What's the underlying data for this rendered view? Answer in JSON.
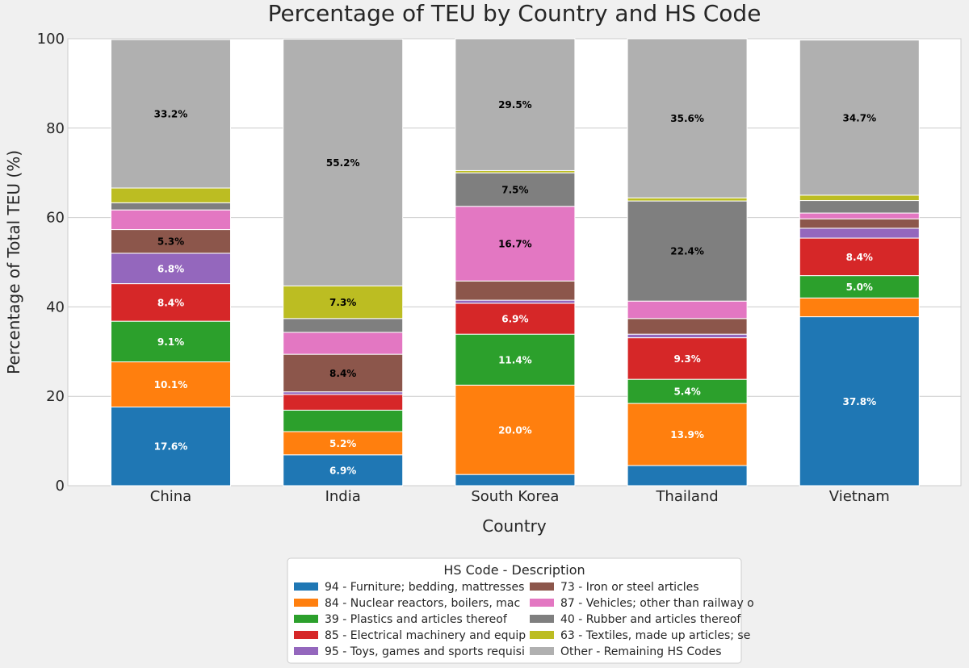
{
  "chart_data": {
    "type": "bar",
    "stacked": true,
    "title": "Percentage of TEU by Country and HS Code",
    "xlabel": "Country",
    "ylabel": "Percentage of Total TEU (%)",
    "ylim": [
      0,
      100
    ],
    "yticks": [
      0,
      20,
      40,
      60,
      80,
      100
    ],
    "grid": true,
    "categories": [
      "China",
      "India",
      "South Korea",
      "Thailand",
      "Vietnam"
    ],
    "legend": {
      "title": "HS Code - Description",
      "placement": "bottom-center",
      "columns": 2
    },
    "label_threshold": 5,
    "series": [
      {
        "name": "94 - Furniture; bedding, mattresses",
        "color": "#1f77b4",
        "label_color": "#ffffff",
        "values": [
          17.6,
          6.9,
          2.5,
          4.5,
          37.8
        ]
      },
      {
        "name": "84 - Nuclear reactors, boilers, mac",
        "color": "#ff7f0e",
        "label_color": "#ffffff",
        "values": [
          10.1,
          5.2,
          20.0,
          13.9,
          4.2
        ]
      },
      {
        "name": "39 - Plastics and articles thereof",
        "color": "#2ca02c",
        "label_color": "#ffffff",
        "values": [
          9.1,
          4.8,
          11.4,
          5.4,
          5.0
        ]
      },
      {
        "name": "85 - Electrical machinery and equip",
        "color": "#d62728",
        "label_color": "#ffffff",
        "values": [
          8.4,
          3.5,
          6.9,
          9.3,
          8.4
        ]
      },
      {
        "name": "95 - Toys, games and sports requisi",
        "color": "#9467bd",
        "label_color": "#ffffff",
        "values": [
          6.8,
          0.6,
          0.7,
          0.8,
          2.2
        ]
      },
      {
        "name": "73 - Iron or steel articles",
        "color": "#8c564b",
        "label_color": "#000000",
        "values": [
          5.3,
          8.4,
          4.3,
          3.5,
          2.1
        ]
      },
      {
        "name": "87 - Vehicles; other than railway o",
        "color": "#e377c2",
        "label_color": "#000000",
        "values": [
          4.4,
          4.9,
          16.7,
          3.9,
          1.3
        ]
      },
      {
        "name": "40 - Rubber and articles thereof",
        "color": "#7f7f7f",
        "label_color": "#000000",
        "values": [
          1.6,
          3.1,
          7.5,
          22.4,
          2.8
        ]
      },
      {
        "name": "63 - Textiles, made up articles; se",
        "color": "#bcbd22",
        "label_color": "#000000",
        "values": [
          3.3,
          7.3,
          0.5,
          0.7,
          1.2
        ]
      },
      {
        "name": "Other - Remaining HS Codes",
        "color": "#b0b0b0",
        "label_color": "#000000",
        "values": [
          33.2,
          55.2,
          29.5,
          35.6,
          34.7
        ]
      }
    ]
  }
}
